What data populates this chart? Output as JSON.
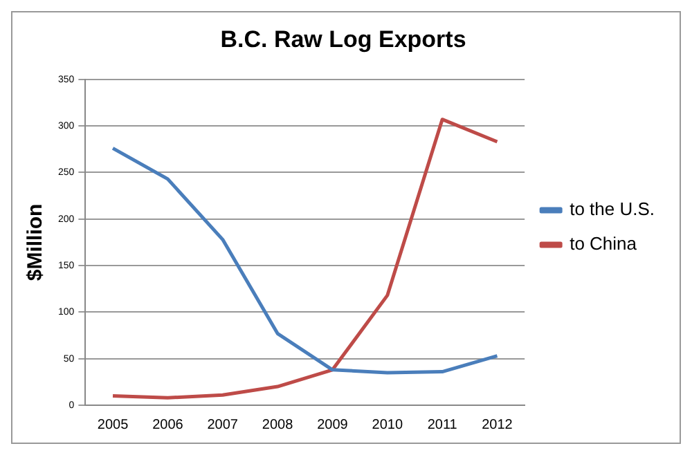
{
  "chart_data": {
    "type": "line",
    "title": "B.C. Raw Log Exports",
    "ylabel": "$Million",
    "categories": [
      "2005",
      "2006",
      "2007",
      "2008",
      "2009",
      "2010",
      "2011",
      "2012"
    ],
    "series": [
      {
        "name": "to the U.S.",
        "color": "#4a7ebb",
        "values": [
          276,
          243,
          178,
          77,
          38,
          35,
          36,
          53
        ]
      },
      {
        "name": "to China",
        "color": "#be4b48",
        "values": [
          10,
          8,
          11,
          20,
          38,
          118,
          307,
          283
        ]
      }
    ],
    "ylim": [
      0,
      350
    ],
    "yticks": [
      0,
      50,
      100,
      150,
      200,
      250,
      300,
      350
    ],
    "grid": "y",
    "legend": "right",
    "marker": "none",
    "line_style": "solid"
  }
}
